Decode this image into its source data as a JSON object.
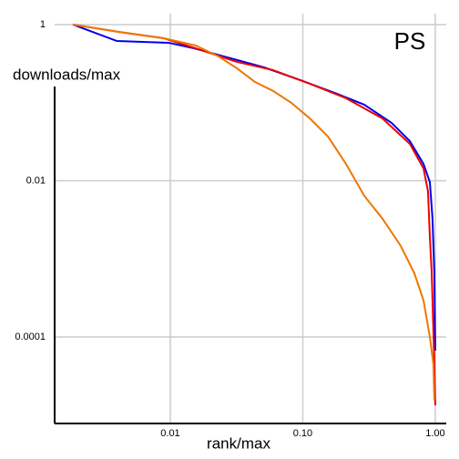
{
  "chart_data": {
    "type": "line",
    "title": "PS",
    "title_color": "#0000dd",
    "xlabel": "rank/max",
    "ylabel": "downloads/max",
    "xscale": "log",
    "yscale": "log",
    "grid": true,
    "xlim": [
      0.00134,
      1.21
    ],
    "ylim": [
      7.8e-06,
      1.38
    ],
    "xticks": [
      {
        "value": 0.01,
        "label": "0.01"
      },
      {
        "value": 0.1,
        "label": "0.10"
      },
      {
        "value": 1,
        "label": "1.00"
      }
    ],
    "yticks": [
      1,
      0.01,
      0.0001
    ],
    "series": [
      {
        "color": "#0000ee",
        "x": [
          0.00184,
          0.00394,
          0.00969,
          0.0151,
          0.0271,
          0.0511,
          0.0962,
          0.181,
          0.291,
          0.468,
          0.643,
          0.815,
          0.91,
          0.953,
          0.984,
          1.0
        ],
        "values": [
          1,
          0.617,
          0.585,
          0.497,
          0.38,
          0.283,
          0.194,
          0.13,
          0.0942,
          0.0551,
          0.0322,
          0.0164,
          0.00961,
          0.00328,
          0.000655,
          6.68e-05
        ]
      },
      {
        "color": "#ee0000",
        "x": [
          0.00184,
          0.00406,
          0.00895,
          0.0156,
          0.0318,
          0.0598,
          0.113,
          0.212,
          0.399,
          0.643,
          0.815,
          0.881,
          0.91,
          0.94,
          0.984,
          1.0
        ],
        "values": [
          1,
          0.807,
          0.668,
          0.497,
          0.333,
          0.261,
          0.175,
          0.114,
          0.0629,
          0.0297,
          0.0144,
          0.00734,
          0.00192,
          0.000655,
          4.47e-05,
          1.33e-05
        ]
      },
      {
        "color": "#ee7700",
        "x": [
          0.00184,
          0.00406,
          0.00895,
          0.0156,
          0.0231,
          0.0318,
          0.0436,
          0.0598,
          0.0821,
          0.113,
          0.155,
          0.212,
          0.291,
          0.399,
          0.548,
          0.695,
          0.815,
          0.91,
          0.968,
          0.984
        ],
        "values": [
          1,
          0.807,
          0.668,
          0.539,
          0.391,
          0.276,
          0.184,
          0.141,
          0.0993,
          0.0629,
          0.0368,
          0.0164,
          0.00642,
          0.00328,
          0.00147,
          0.000655,
          0.000293,
          0.0001,
          4.47e-05,
          1.53e-05
        ]
      }
    ]
  }
}
